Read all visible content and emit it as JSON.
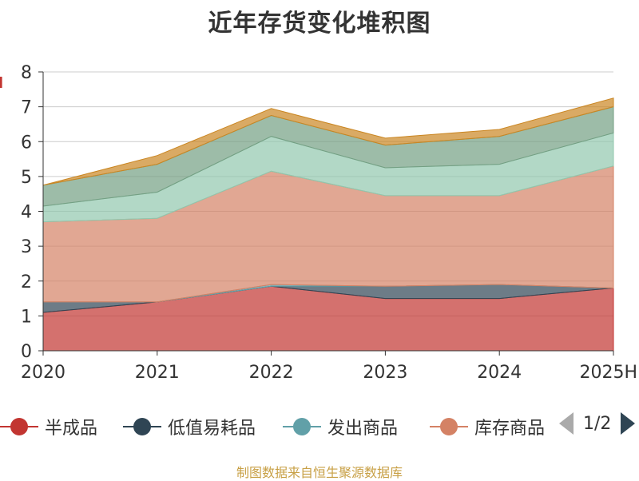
{
  "title": "近年存货变化堆积图",
  "footer": "制图数据来自恒生聚源数据库",
  "colors": {
    "grid": "#cccccc",
    "axis": "#333333",
    "accent_red": "#c23531",
    "footer_gold": "#c8a046"
  },
  "legend": {
    "items": [
      {
        "label": "半成品",
        "color": "#c23531"
      },
      {
        "label": "低值易耗品",
        "color": "#2f4554"
      },
      {
        "label": "发出商品",
        "color": "#61a0a8"
      },
      {
        "label": "库存商品",
        "color": "#d48265"
      }
    ],
    "pager": {
      "text": "1/2",
      "prev_icon": "triangle-left-icon",
      "next_icon": "triangle-right-icon"
    }
  },
  "chart_data": {
    "type": "area",
    "title": "近年存货变化堆积图",
    "categories": [
      "2020",
      "2021",
      "2022",
      "2023",
      "2024",
      "2025H"
    ],
    "ylim": [
      0,
      8
    ],
    "yticks": [
      0,
      1,
      2,
      3,
      4,
      5,
      6,
      7,
      8
    ],
    "grid": true,
    "legend_position": "bottom",
    "series": [
      {
        "name": "半成品",
        "color": "#c23531",
        "cumulative_top": [
          1.1,
          1.4,
          1.85,
          1.5,
          1.5,
          1.8
        ]
      },
      {
        "name": "低值易耗品",
        "color": "#2f4554",
        "cumulative_top": [
          1.4,
          1.4,
          1.85,
          1.85,
          1.9,
          1.8
        ]
      },
      {
        "name": "发出商品",
        "color": "#61a0a8",
        "cumulative_top": [
          1.4,
          1.4,
          1.9,
          1.85,
          1.9,
          1.8
        ]
      },
      {
        "name": "库存商品",
        "color": "#d48265",
        "cumulative_top": [
          3.7,
          3.8,
          5.15,
          4.45,
          4.45,
          5.3
        ]
      },
      {
        "color": "#91c7ae",
        "cumulative_top": [
          4.15,
          4.55,
          6.15,
          5.25,
          5.35,
          6.25
        ]
      },
      {
        "color": "#749f83",
        "cumulative_top": [
          4.75,
          5.35,
          6.75,
          5.9,
          6.15,
          7.0
        ]
      },
      {
        "color": "#ca8622",
        "cumulative_top": [
          4.75,
          5.6,
          6.95,
          6.1,
          6.35,
          7.25
        ]
      }
    ]
  }
}
